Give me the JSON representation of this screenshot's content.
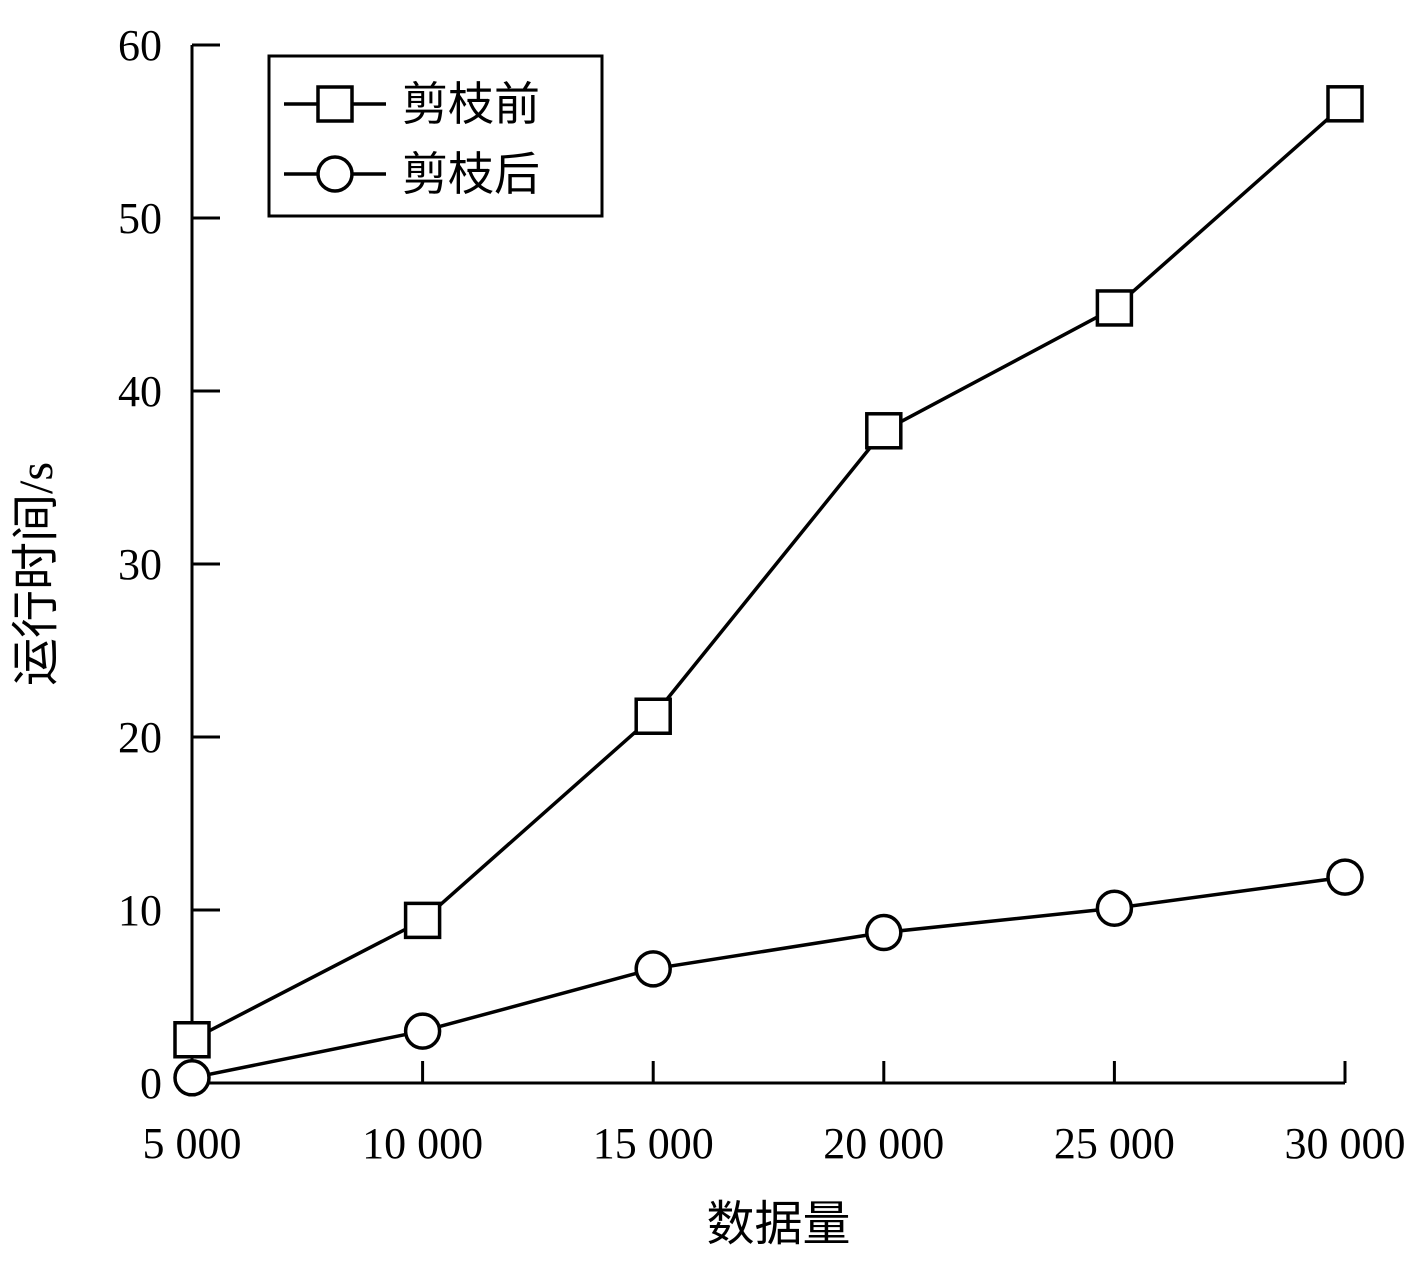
{
  "chart_data": {
    "type": "line",
    "title": "",
    "xlabel": "数据量",
    "ylabel": "运行时间/s",
    "x": [
      5000,
      10000,
      15000,
      20000,
      25000,
      30000
    ],
    "x_tick_labels": [
      "5 000",
      "10 000",
      "15 000",
      "20 000",
      "25 000",
      "30 000"
    ],
    "y_ticks": [
      0,
      10,
      20,
      30,
      40,
      50,
      60
    ],
    "y_tick_labels": [
      "0",
      "10",
      "20",
      "30",
      "40",
      "50",
      "60"
    ],
    "xlim": [
      5000,
      30000
    ],
    "ylim": [
      0,
      60
    ],
    "grid": false,
    "legend_position": "top-left",
    "series": [
      {
        "name": "剪枝前",
        "marker": "square",
        "color": "#000000",
        "values": [
          2.5,
          9.4,
          21.2,
          37.7,
          44.8,
          56.6
        ]
      },
      {
        "name": "剪枝后",
        "marker": "circle",
        "color": "#000000",
        "values": [
          0.3,
          3.0,
          6.6,
          8.7,
          10.1,
          11.9
        ]
      }
    ]
  }
}
